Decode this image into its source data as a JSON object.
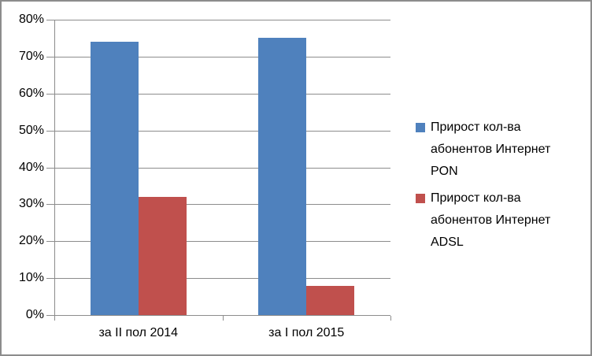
{
  "chart_data": {
    "type": "bar",
    "categories": [
      "за II пол 2014",
      "за I пол 2015"
    ],
    "series": [
      {
        "name": "Прирост кол-ва абонентов Интернет PON",
        "values": [
          74,
          75
        ],
        "color": "#4f81bd"
      },
      {
        "name": "Прирост кол-ва абонентов Интернет ADSL",
        "values": [
          32,
          8
        ],
        "color": "#c0504d"
      }
    ],
    "title": "",
    "xlabel": "",
    "ylabel": "",
    "ylim": [
      0,
      80
    ],
    "ytick_step": 10,
    "ytick_suffix": "%",
    "ytick_labels": [
      "0%",
      "10%",
      "20%",
      "30%",
      "40%",
      "50%",
      "60%",
      "70%",
      "80%"
    ],
    "grid": true,
    "legend_position": "right",
    "colors": {
      "gridline": "#8c8c8c",
      "axis": "#8c8c8c",
      "frame_border": "#8c8c8c",
      "background": "#ffffff",
      "text": "#000000"
    }
  }
}
